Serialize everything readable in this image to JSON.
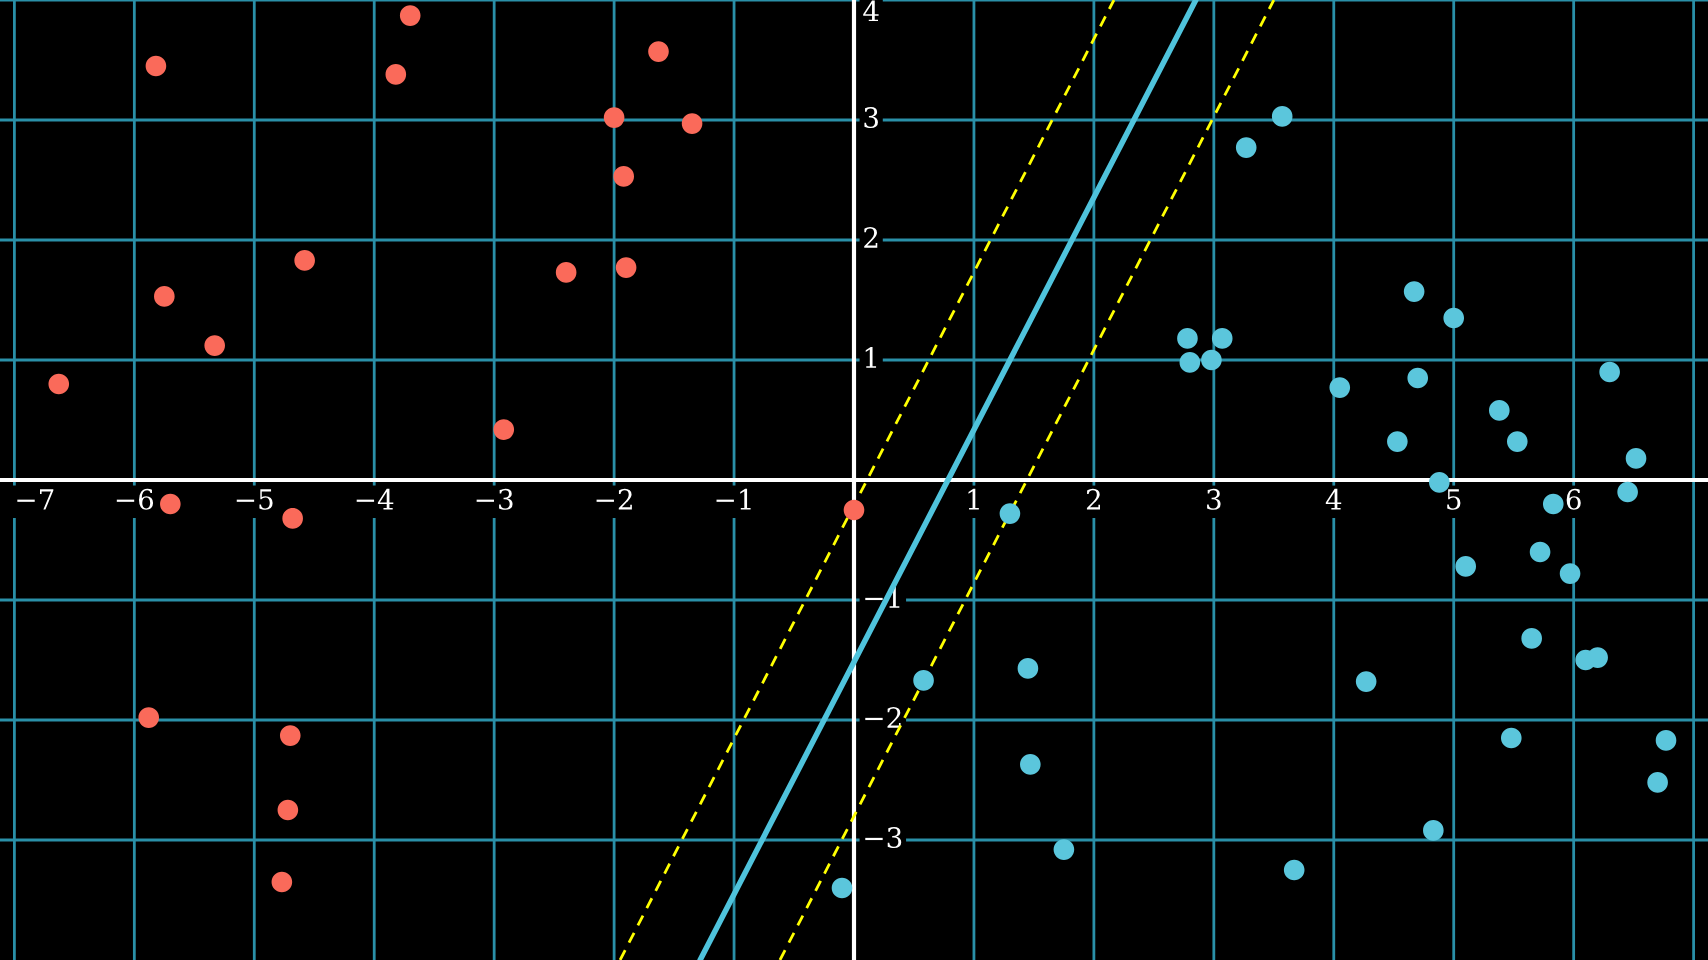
{
  "chart_data": {
    "type": "scatter",
    "xlim": [
      -7.12,
      7.12
    ],
    "ylim": [
      -4,
      4
    ],
    "xticks": [
      -7,
      -6,
      -5,
      -4,
      -3,
      -2,
      -1,
      1,
      2,
      3,
      4,
      5,
      6,
      {
        "value": 7,
        "label": null
      }
    ],
    "yticks": [
      -3,
      -2,
      -1,
      1,
      2,
      3,
      4
    ],
    "grid": true,
    "marker": "circle",
    "series": [
      {
        "color": "#fa6a5a",
        "x": [
          -3.7,
          -5.82,
          -3.82,
          -1.63,
          -2.0,
          -1.35,
          -1.92,
          -4.58,
          -2.4,
          -1.9,
          -5.75,
          -5.33,
          -6.63,
          -2.92,
          -5.7,
          -4.68,
          0.0,
          -5.88,
          -4.7,
          -4.72,
          -4.77
        ],
        "values": [
          3.87,
          3.45,
          3.38,
          3.57,
          3.02,
          2.97,
          2.53,
          1.83,
          1.73,
          1.77,
          1.53,
          1.12,
          0.8,
          0.42,
          -0.2,
          -0.32,
          -0.25,
          -1.98,
          -2.13,
          -2.75,
          -3.35
        ]
      },
      {
        "color": "#5bc6dc",
        "x": [
          3.57,
          3.27,
          4.67,
          5.0,
          2.78,
          3.07,
          2.8,
          2.98,
          4.7,
          6.3,
          4.05,
          5.38,
          4.53,
          5.53,
          6.52,
          4.88,
          6.45,
          5.83,
          1.3,
          5.72,
          5.1,
          5.97,
          5.65,
          1.45,
          6.1,
          6.2,
          0.58,
          4.27,
          6.77,
          5.48,
          1.47,
          6.7,
          4.83,
          1.75,
          3.67,
          -0.1
        ],
        "values": [
          3.03,
          2.77,
          1.57,
          1.35,
          1.18,
          1.18,
          0.98,
          1.0,
          0.85,
          0.9,
          0.77,
          0.58,
          0.32,
          0.32,
          0.18,
          -0.02,
          -0.1,
          -0.2,
          -0.28,
          -0.6,
          -0.72,
          -0.78,
          -1.32,
          -1.57,
          -1.5,
          -1.48,
          -1.67,
          -1.68,
          -2.17,
          -2.15,
          -2.37,
          -2.52,
          -2.92,
          -3.08,
          -3.25,
          -3.4
        ]
      },
      {
        "type": "line",
        "color": "#4fc3dc",
        "line_style": "solid",
        "marker": "none",
        "x": [
          -1.283,
          2.85
        ],
        "values": [
          -4,
          4
        ]
      },
      {
        "type": "line",
        "color": "#ffff00",
        "line_style": "dashed",
        "marker": "none",
        "x": [
          -1.95,
          2.167
        ],
        "values": [
          -4,
          4
        ]
      },
      {
        "type": "line",
        "color": "#ffff00",
        "line_style": "dashed",
        "marker": "none",
        "x": [
          -0.617,
          3.5
        ],
        "values": [
          -4,
          4
        ]
      }
    ]
  }
}
